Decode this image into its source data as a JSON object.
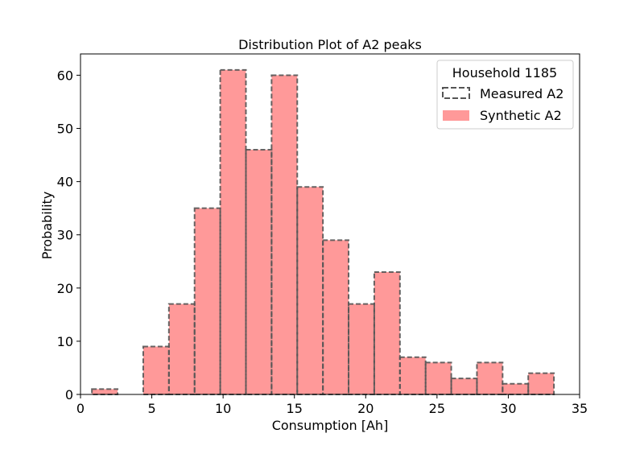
{
  "chart_data": {
    "type": "bar",
    "title": "Distribution Plot of A2 peaks",
    "xlabel": "Consumption [Ah]",
    "ylabel": "Probability",
    "xlim": [
      0,
      35
    ],
    "ylim": [
      0,
      64
    ],
    "xticks": [
      0,
      5,
      10,
      15,
      20,
      25,
      30,
      35
    ],
    "yticks": [
      0,
      10,
      20,
      30,
      40,
      50,
      60
    ],
    "grid": false,
    "legend": {
      "title": "Household 1185",
      "position": "top-right",
      "entries": [
        "Measured A2",
        "Synthetic A2"
      ]
    },
    "bin_edges": [
      0.8,
      2.6,
      4.4,
      6.2,
      8.0,
      9.8,
      11.6,
      13.4,
      15.2,
      17.0,
      18.8,
      20.6,
      22.4,
      24.2,
      26.0,
      27.8,
      29.6,
      31.4,
      33.2
    ],
    "series": [
      {
        "name": "Measured A2",
        "style": "dashed-outline",
        "color": "#555555",
        "values": [
          1,
          0,
          9,
          17,
          35,
          61,
          46,
          60,
          39,
          29,
          17,
          23,
          7,
          6,
          3,
          6,
          2,
          4
        ]
      },
      {
        "name": "Synthetic A2",
        "style": "filled",
        "color": "#ff9999",
        "values": [
          1,
          0,
          9,
          17,
          35,
          61,
          46,
          60,
          39,
          29,
          17,
          23,
          7,
          6,
          3,
          6,
          2,
          4
        ]
      }
    ]
  }
}
